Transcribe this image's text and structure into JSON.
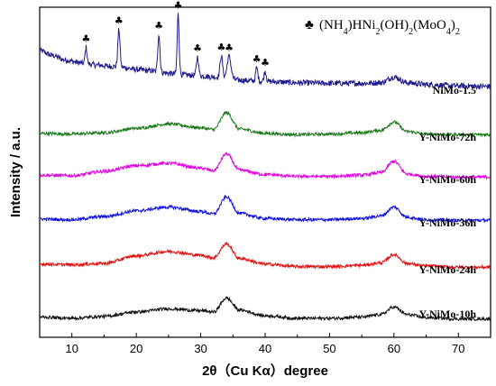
{
  "chart_data": {
    "type": "line",
    "title": "",
    "xlabel": "2θ（Cu Kα）degree",
    "ylabel": "Intensity / a.u.",
    "xlim": [
      5,
      75
    ],
    "xticks": [
      "10",
      "20",
      "30",
      "40",
      "50",
      "60",
      "70"
    ],
    "xtick_values": [
      10,
      20,
      30,
      40,
      50,
      60,
      70
    ],
    "yticks_shown": false,
    "grid": false,
    "legend": {
      "symbol": "♣",
      "text": "(NH4)HNi2(OH)2(MoO4)2",
      "placement": "top-right"
    },
    "marker_symbol": "♣",
    "series": [
      {
        "name": "NiMo-1.5",
        "color": "#1f1a8c",
        "noise": 0.45,
        "points": [
          [
            5,
            6.0
          ],
          [
            7,
            5.2
          ],
          [
            9,
            4.5
          ],
          [
            11,
            4.1
          ],
          [
            12,
            3.9
          ],
          [
            14,
            3.7
          ],
          [
            16,
            3.5
          ],
          [
            18,
            3.3
          ],
          [
            20,
            3.0
          ],
          [
            22,
            2.8
          ],
          [
            24,
            2.5
          ],
          [
            26,
            2.3
          ],
          [
            28,
            2.1
          ],
          [
            30,
            2.0
          ],
          [
            32,
            1.8
          ],
          [
            34,
            1.6
          ],
          [
            36,
            1.3
          ],
          [
            38,
            1.2
          ],
          [
            40,
            1.1
          ],
          [
            45,
            0.9
          ],
          [
            50,
            0.8
          ],
          [
            55,
            0.8
          ],
          [
            58,
            0.9
          ],
          [
            60,
            1.8
          ],
          [
            62,
            0.9
          ],
          [
            65,
            0.6
          ],
          [
            70,
            0.4
          ],
          [
            75,
            0.3
          ]
        ],
        "peaks": [
          [
            12.2,
            2.6,
            0.15
          ],
          [
            17.3,
            6.0,
            0.17
          ],
          [
            23.5,
            6.0,
            0.17
          ],
          [
            26.5,
            9.5,
            0.15
          ],
          [
            29.5,
            3.0,
            0.17
          ],
          [
            33.2,
            3.5,
            0.2
          ],
          [
            34.4,
            3.5,
            0.3
          ],
          [
            38.7,
            2.1,
            0.17
          ],
          [
            40.0,
            1.6,
            0.17
          ]
        ],
        "markers": [
          12.2,
          17.3,
          23.5,
          26.5,
          29.5,
          33.2,
          34.4,
          38.7,
          40.0
        ]
      },
      {
        "name": "Y-NiMo-72h",
        "color": "#1a7a1a",
        "noise": 0.25,
        "points": [
          [
            5,
            0.3
          ],
          [
            10,
            0.2
          ],
          [
            15,
            0.4
          ],
          [
            20,
            1.1
          ],
          [
            25,
            1.8
          ],
          [
            30,
            1.2
          ],
          [
            32,
            0.9
          ],
          [
            34,
            3.6
          ],
          [
            36,
            1.0
          ],
          [
            40,
            0.3
          ],
          [
            45,
            0.1
          ],
          [
            50,
            0.2
          ],
          [
            55,
            0.4
          ],
          [
            58,
            0.8
          ],
          [
            60,
            2.1
          ],
          [
            62,
            0.6
          ],
          [
            65,
            0.2
          ],
          [
            70,
            0.1
          ],
          [
            75,
            0.1
          ]
        ],
        "peaks": [],
        "markers": []
      },
      {
        "name": "Y-NiMo-60h",
        "color": "#e000e0",
        "noise": 0.25,
        "points": [
          [
            5,
            0.4
          ],
          [
            10,
            0.3
          ],
          [
            15,
            1.0
          ],
          [
            20,
            1.9
          ],
          [
            25,
            2.3
          ],
          [
            30,
            1.5
          ],
          [
            32,
            1.1
          ],
          [
            34,
            3.8
          ],
          [
            36,
            1.2
          ],
          [
            40,
            0.5
          ],
          [
            45,
            0.2
          ],
          [
            50,
            0.2
          ],
          [
            55,
            0.4
          ],
          [
            58,
            0.8
          ],
          [
            60,
            2.6
          ],
          [
            62,
            0.6
          ],
          [
            65,
            0.2
          ],
          [
            70,
            0.1
          ],
          [
            75,
            0.1
          ]
        ],
        "peaks": [],
        "markers": []
      },
      {
        "name": "Y-NiMo-36h",
        "color": "#1010e0",
        "noise": 0.25,
        "points": [
          [
            5,
            0.3
          ],
          [
            10,
            0.2
          ],
          [
            15,
            0.7
          ],
          [
            20,
            1.6
          ],
          [
            25,
            2.2
          ],
          [
            30,
            1.5
          ],
          [
            32,
            1.1
          ],
          [
            34,
            3.8
          ],
          [
            36,
            1.2
          ],
          [
            40,
            0.4
          ],
          [
            45,
            0.2
          ],
          [
            50,
            0.2
          ],
          [
            55,
            0.4
          ],
          [
            58,
            0.8
          ],
          [
            60,
            2.2
          ],
          [
            62,
            0.6
          ],
          [
            65,
            0.2
          ],
          [
            70,
            0.1
          ],
          [
            75,
            0.1
          ]
        ],
        "peaks": [],
        "markers": []
      },
      {
        "name": "Y-NiMo-24h",
        "color": "#e01010",
        "noise": 0.25,
        "points": [
          [
            5,
            0.6
          ],
          [
            10,
            0.5
          ],
          [
            15,
            0.7
          ],
          [
            20,
            1.9
          ],
          [
            25,
            2.6
          ],
          [
            30,
            2.0
          ],
          [
            32,
            1.6
          ],
          [
            34,
            3.8
          ],
          [
            36,
            1.5
          ],
          [
            40,
            0.6
          ],
          [
            45,
            0.2
          ],
          [
            50,
            0.2
          ],
          [
            55,
            0.4
          ],
          [
            58,
            0.8
          ],
          [
            60,
            2.1
          ],
          [
            62,
            0.7
          ],
          [
            65,
            0.3
          ],
          [
            70,
            0.1
          ],
          [
            75,
            0.1
          ]
        ],
        "peaks": [],
        "markers": []
      },
      {
        "name": "Y-NiMo-10h",
        "color": "#111111",
        "noise": 0.25,
        "points": [
          [
            5,
            0.5
          ],
          [
            10,
            0.3
          ],
          [
            15,
            0.6
          ],
          [
            20,
            1.3
          ],
          [
            25,
            1.8
          ],
          [
            30,
            1.5
          ],
          [
            32,
            1.3
          ],
          [
            34,
            3.5
          ],
          [
            36,
            1.6
          ],
          [
            40,
            0.7
          ],
          [
            45,
            0.3
          ],
          [
            50,
            0.3
          ],
          [
            55,
            0.5
          ],
          [
            58,
            0.9
          ],
          [
            60,
            2.1
          ],
          [
            62,
            0.9
          ],
          [
            65,
            0.4
          ],
          [
            70,
            0.2
          ],
          [
            75,
            0.2
          ]
        ],
        "peaks": [],
        "markers": []
      }
    ]
  }
}
